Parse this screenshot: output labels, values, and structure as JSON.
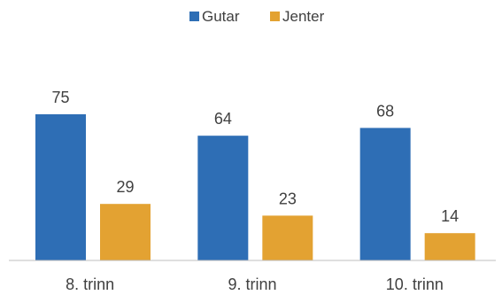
{
  "chart_data": {
    "type": "bar",
    "categories": [
      "8. trinn",
      "9. trinn",
      "10. trinn"
    ],
    "series": [
      {
        "name": "Gutar",
        "values": [
          75,
          64,
          68
        ],
        "color": "#2E6EB5"
      },
      {
        "name": "Jenter",
        "values": [
          29,
          23,
          14
        ],
        "color": "#E3A232"
      }
    ],
    "legend_position": "top-center",
    "grid": false,
    "ylim": [
      0,
      100
    ]
  }
}
